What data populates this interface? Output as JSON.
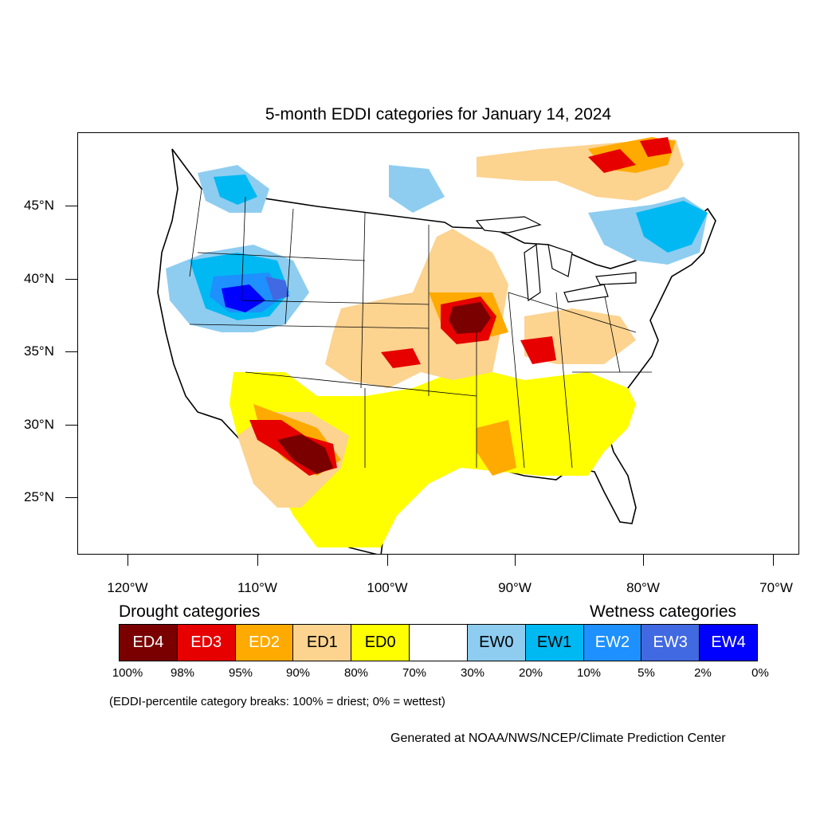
{
  "title": "5-month EDDI categories for January 14, 2024",
  "map": {
    "lat_labels": [
      "45°N",
      "40°N",
      "35°N",
      "30°N",
      "25°N"
    ],
    "lon_labels": [
      "120°W",
      "110°W",
      "100°W",
      "90°W",
      "80°W",
      "70°W"
    ],
    "colors": {
      "ED4": "#7a0000",
      "ED3": "#e60000",
      "ED2": "#ffaa00",
      "ED1": "#fcd38f",
      "ED0": "#ffff00",
      "EW0": "#8ecdf0",
      "EW1": "#00b9f2",
      "EW2": "#1e90ff",
      "EW3": "#4169e1",
      "EW4": "#0000ff"
    }
  },
  "legend": {
    "drought_heading": "Drought categories",
    "wetness_heading": "Wetness categories",
    "categories": [
      {
        "label": "ED4",
        "color": "#7a0000",
        "text_color": "#ffffff"
      },
      {
        "label": "ED3",
        "color": "#e60000",
        "text_color": "#ffffff"
      },
      {
        "label": "ED2",
        "color": "#ffaa00",
        "text_color": "#ffffff"
      },
      {
        "label": "ED1",
        "color": "#fcd38f",
        "text_color": "#000000"
      },
      {
        "label": "ED0",
        "color": "#ffff00",
        "text_color": "#000000"
      },
      {
        "label": "",
        "color": "#ffffff",
        "text_color": "#000000"
      },
      {
        "label": "EW0",
        "color": "#8ecdf0",
        "text_color": "#000000"
      },
      {
        "label": "EW1",
        "color": "#00b9f2",
        "text_color": "#000000"
      },
      {
        "label": "EW2",
        "color": "#1e90ff",
        "text_color": "#ffffff"
      },
      {
        "label": "EW3",
        "color": "#4169e1",
        "text_color": "#ffffff"
      },
      {
        "label": "EW4",
        "color": "#0000ff",
        "text_color": "#ffffff"
      }
    ],
    "percent_breaks": [
      "100%",
      "98%",
      "95%",
      "90%",
      "80%",
      "70%",
      "30%",
      "20%",
      "10%",
      "5%",
      "2%",
      "0%"
    ]
  },
  "footnote": "(EDDI-percentile category breaks: 100% = driest; 0% = wettest)",
  "credit": "Generated at NOAA/NWS/NCEP/Climate Prediction Center"
}
